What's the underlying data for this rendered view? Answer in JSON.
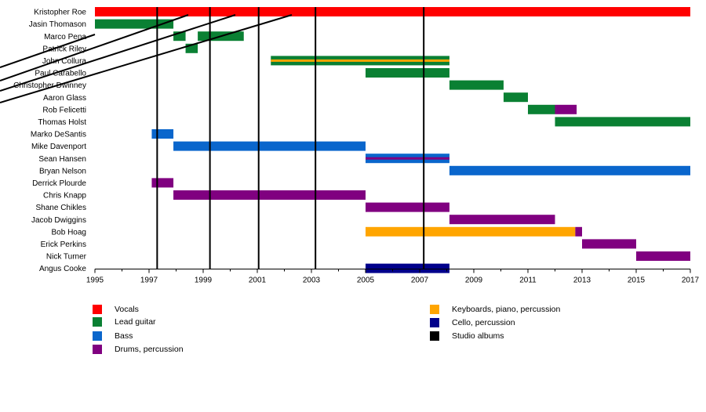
{
  "chart_data": {
    "type": "timeline",
    "title": "",
    "xlabel": "",
    "ylabel": "",
    "xlim": [
      1995,
      2017
    ],
    "x_ticks": [
      "1995",
      "1997",
      "1999",
      "2001",
      "2003",
      "2005",
      "2007",
      "2009",
      "2011",
      "2013",
      "2015",
      "2017"
    ],
    "grid": false,
    "legend_position": "bottom",
    "roles": [
      {
        "key": "vocals",
        "label": "Vocals",
        "color": "#ff0000"
      },
      {
        "key": "lead",
        "label": "Lead guitar",
        "color": "#0a8033"
      },
      {
        "key": "bass",
        "label": "Bass",
        "color": "#0a66cc"
      },
      {
        "key": "drums",
        "label": "Drums, percussion",
        "color": "#800080"
      },
      {
        "key": "keys",
        "label": "Keyboards, piano, percussion",
        "color": "#ffa500"
      },
      {
        "key": "cello",
        "label": "Cello, percussion",
        "color": "#00008b"
      },
      {
        "key": "albums",
        "label": "Studio albums",
        "color": "#000000"
      }
    ],
    "members": [
      {
        "name": "Kristopher Roe",
        "spans": [
          {
            "role": "vocals",
            "start": 1995.0,
            "end": 2017.0
          }
        ]
      },
      {
        "name": "Jasin Thomason",
        "spans": [
          {
            "role": "lead",
            "start": 1995.0,
            "end": 1997.9
          }
        ]
      },
      {
        "name": "Marco Pena",
        "spans": [
          {
            "role": "lead",
            "start": 1997.9,
            "end": 1998.35
          },
          {
            "role": "lead",
            "start": 1998.8,
            "end": 2000.5
          }
        ]
      },
      {
        "name": "Patrick Riley",
        "spans": [
          {
            "role": "lead",
            "start": 1998.35,
            "end": 1998.8
          }
        ]
      },
      {
        "name": "John Collura",
        "spans": [
          {
            "role": "lead",
            "start": 2001.5,
            "end": 2008.1
          },
          {
            "role": "keys",
            "start": 2001.5,
            "end": 2008.1,
            "stripe": true
          }
        ]
      },
      {
        "name": "Paul Carabello",
        "spans": [
          {
            "role": "lead",
            "start": 2005.0,
            "end": 2008.1
          }
        ]
      },
      {
        "name": "Christopher Dwinney",
        "spans": [
          {
            "role": "lead",
            "start": 2008.1,
            "end": 2010.1
          }
        ]
      },
      {
        "name": "Aaron Glass",
        "spans": [
          {
            "role": "lead",
            "start": 2010.1,
            "end": 2011.0
          }
        ]
      },
      {
        "name": "Rob Felicetti",
        "spans": [
          {
            "role": "lead",
            "start": 2011.0,
            "end": 2012.0
          },
          {
            "role": "drums",
            "start": 2012.0,
            "end": 2012.8
          }
        ]
      },
      {
        "name": "Thomas Holst",
        "spans": [
          {
            "role": "lead",
            "start": 2012.0,
            "end": 2017.0
          }
        ]
      },
      {
        "name": "Marko DeSantis",
        "spans": [
          {
            "role": "bass",
            "start": 1997.1,
            "end": 1997.9
          }
        ]
      },
      {
        "name": "Mike Davenport",
        "spans": [
          {
            "role": "bass",
            "start": 1997.9,
            "end": 2005.0
          }
        ]
      },
      {
        "name": "Sean Hansen",
        "spans": [
          {
            "role": "bass",
            "start": 2005.0,
            "end": 2008.1
          },
          {
            "role": "drums",
            "start": 2005.0,
            "end": 2008.1,
            "stripe": true
          }
        ]
      },
      {
        "name": "Bryan Nelson",
        "spans": [
          {
            "role": "bass",
            "start": 2008.1,
            "end": 2017.0
          }
        ]
      },
      {
        "name": "Derrick Plourde",
        "spans": [
          {
            "role": "drums",
            "start": 1997.1,
            "end": 1997.9
          }
        ]
      },
      {
        "name": "Chris Knapp",
        "spans": [
          {
            "role": "drums",
            "start": 1997.9,
            "end": 2005.0
          }
        ]
      },
      {
        "name": "Shane Chikles",
        "spans": [
          {
            "role": "drums",
            "start": 2005.0,
            "end": 2008.1
          }
        ]
      },
      {
        "name": "Jacob Dwiggins",
        "spans": [
          {
            "role": "drums",
            "start": 2008.1,
            "end": 2012.0
          }
        ]
      },
      {
        "name": "Bob Hoag",
        "spans": [
          {
            "role": "keys",
            "start": 2005.0,
            "end": 2012.75
          },
          {
            "role": "drums",
            "start": 2012.75,
            "end": 2013.0
          }
        ]
      },
      {
        "name": "Erick Perkins",
        "spans": [
          {
            "role": "drums",
            "start": 2013.0,
            "end": 2015.0
          }
        ]
      },
      {
        "name": "Nick Turner",
        "spans": [
          {
            "role": "drums",
            "start": 2015.0,
            "end": 2017.0
          }
        ]
      },
      {
        "name": "Angus Cooke",
        "spans": [
          {
            "role": "cello",
            "start": 2005.0,
            "end": 2008.1
          }
        ]
      }
    ],
    "studio_albums": [
      1997.3,
      1999.25,
      2001.05,
      2003.15,
      2007.15
    ]
  }
}
